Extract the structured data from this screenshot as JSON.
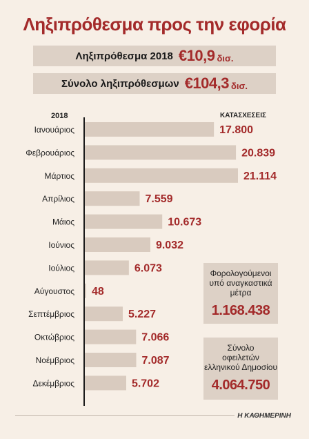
{
  "title": "Ληξιπρόθεσμα προς την εφορία",
  "summary": {
    "row1": {
      "label": "Ληξιπρόθεσμα 2018",
      "amount": "€10,9",
      "unit": "δισ."
    },
    "row2": {
      "label": "Σύνολο ληξιπρόθεσμων",
      "amount": "€104,3",
      "unit": "δισ."
    }
  },
  "chart_data": {
    "type": "bar",
    "orientation": "horizontal",
    "year_label": "2018",
    "unit_label": "ΚΑΤΑΣΧΕΣΕΙΣ",
    "categories": [
      "Ιανουάριος",
      "Φεβρουάριος",
      "Μάρτιος",
      "Απρίλιος",
      "Μάιος",
      "Ιούνιος",
      "Ιούλιος",
      "Αύγουστος",
      "Σεπτέμβριος",
      "Οκτώβριος",
      "Νοέμβριος",
      "Δεκέμβριος"
    ],
    "values": [
      17800,
      20839,
      21114,
      7559,
      10673,
      9032,
      6073,
      48,
      5227,
      7066,
      7087,
      5702
    ],
    "value_labels": [
      "17.800",
      "20.839",
      "21.114",
      "7.559",
      "10.673",
      "9.032",
      "6.073",
      "48",
      "5.227",
      "7.066",
      "7.087",
      "5.702"
    ],
    "colors": {
      "bar": "#d9cbbf",
      "value": "#a32a2a",
      "axis": "#1a1a1a"
    }
  },
  "box1": {
    "text": [
      "Φορολογούμενοι",
      "υπό αναγκαστικά",
      "μέτρα"
    ],
    "number": "1.168.438"
  },
  "box2": {
    "text": [
      "Σύνολο",
      "οφειλετών",
      "ελληνικού Δημοσίου"
    ],
    "number": "4.064.750"
  },
  "source": "Η ΚΑΘΗΜΕΡΙΝΗ"
}
